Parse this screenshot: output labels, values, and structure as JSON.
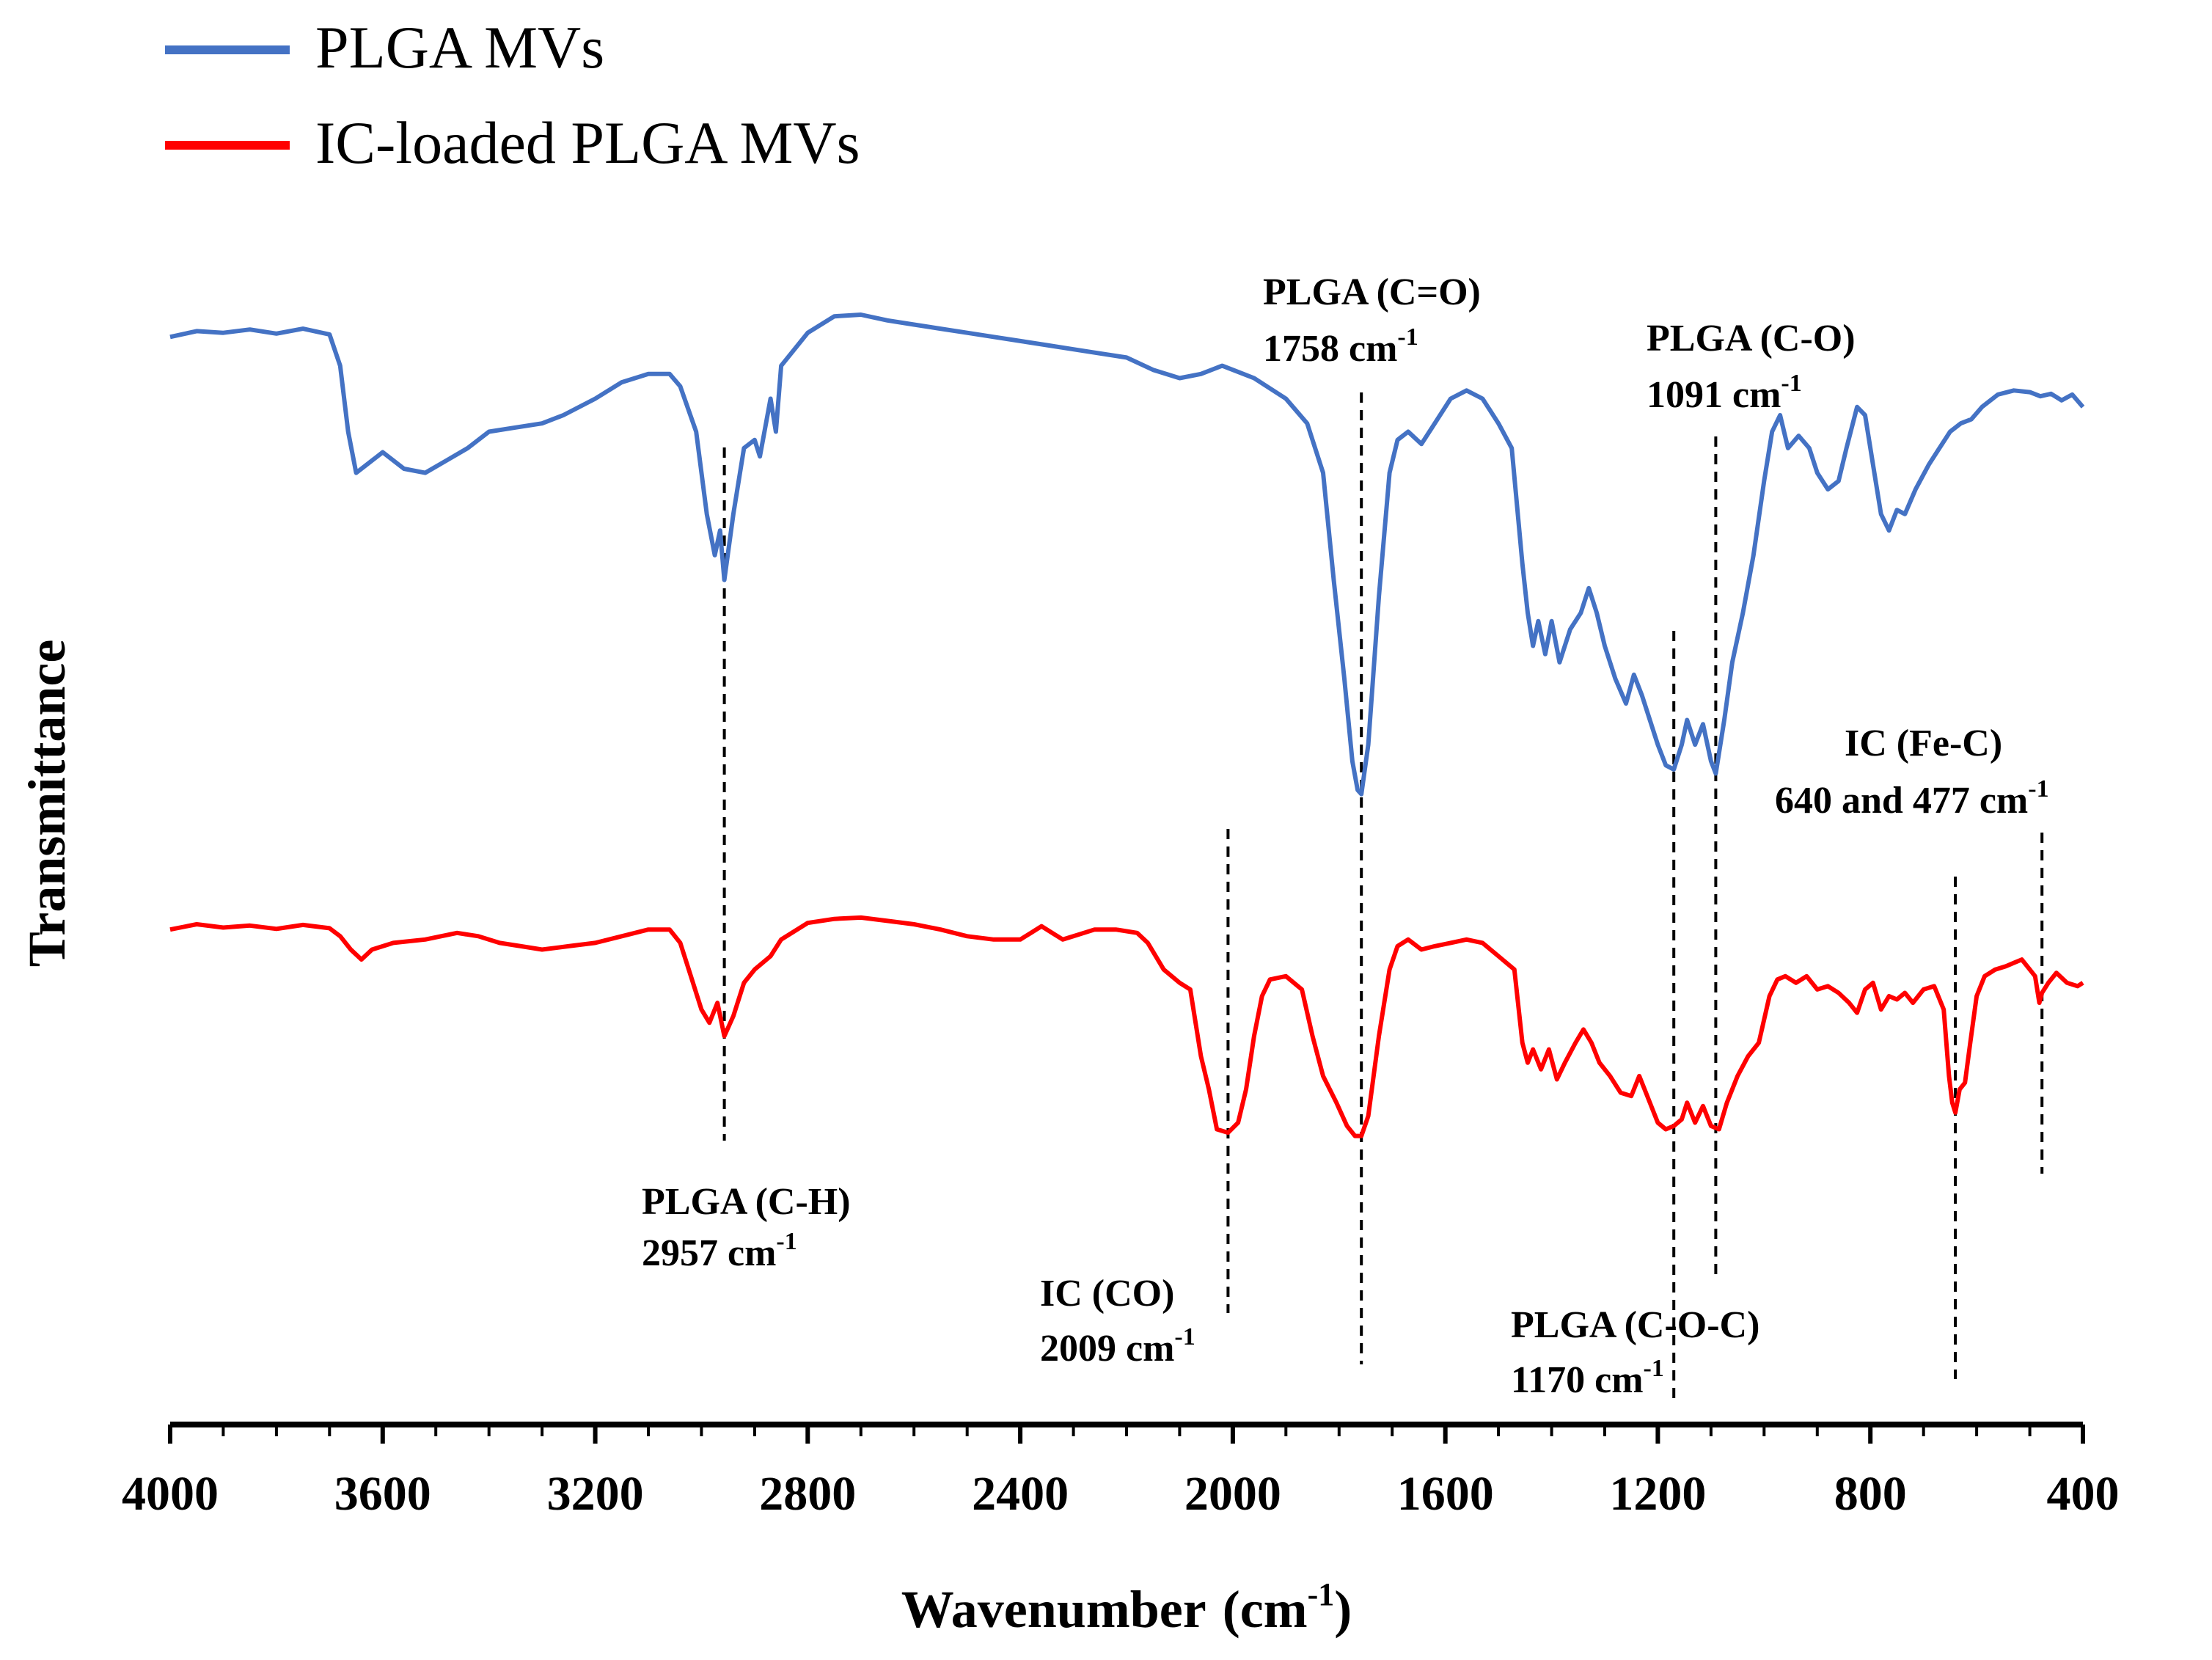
{
  "chart_data": {
    "type": "line",
    "title": "",
    "xlabel": "Wavenumber (cm⁻¹)",
    "xlabel_main": "Wavenumber",
    "xlabel_unit": "(cm",
    "xlabel_sup": "-1",
    "xlabel_close": ")",
    "ylabel": "Transmittance",
    "xlim": [
      4000,
      400
    ],
    "x_reversed": true,
    "x_ticks": [
      4000,
      3600,
      3200,
      2800,
      2400,
      2000,
      1600,
      1200,
      800,
      400
    ],
    "x_tick_labels": [
      "4000",
      "3600",
      "3200",
      "2800",
      "2400",
      "2000",
      "1600",
      "1200",
      "800",
      "400"
    ],
    "y_ticks": [],
    "ylim": [
      0,
      100
    ],
    "grid": false,
    "legend_position": "top-left",
    "colors": {
      "plga": "#4472c4",
      "ic": "#ff0000",
      "axis": "#000000"
    },
    "series": [
      {
        "name": "PLGA MVs",
        "color": "#4472c4",
        "points": [
          [
            4000,
            91.5
          ],
          [
            3950,
            92.2
          ],
          [
            3900,
            92.0
          ],
          [
            3850,
            92.4
          ],
          [
            3800,
            91.9
          ],
          [
            3750,
            92.5
          ],
          [
            3700,
            91.8
          ],
          [
            3680,
            88.0
          ],
          [
            3665,
            80.0
          ],
          [
            3650,
            75.0
          ],
          [
            3620,
            76.5
          ],
          [
            3600,
            77.5
          ],
          [
            3560,
            75.5
          ],
          [
            3520,
            75.0
          ],
          [
            3480,
            76.5
          ],
          [
            3440,
            78.0
          ],
          [
            3400,
            80.0
          ],
          [
            3350,
            80.5
          ],
          [
            3300,
            81.0
          ],
          [
            3260,
            82.0
          ],
          [
            3200,
            84.0
          ],
          [
            3150,
            86.0
          ],
          [
            3100,
            87.0
          ],
          [
            3060,
            87.0
          ],
          [
            3040,
            85.5
          ],
          [
            3010,
            80.0
          ],
          [
            2990,
            70.0
          ],
          [
            2975,
            65.0
          ],
          [
            2965,
            68.0
          ],
          [
            2957,
            62.0
          ],
          [
            2940,
            70.0
          ],
          [
            2920,
            78.0
          ],
          [
            2900,
            79.0
          ],
          [
            2890,
            77.0
          ],
          [
            2870,
            84.0
          ],
          [
            2860,
            80.0
          ],
          [
            2850,
            88.0
          ],
          [
            2800,
            92.0
          ],
          [
            2750,
            94.0
          ],
          [
            2700,
            94.2
          ],
          [
            2650,
            93.5
          ],
          [
            2600,
            93.0
          ],
          [
            2550,
            92.5
          ],
          [
            2500,
            92.0
          ],
          [
            2450,
            91.5
          ],
          [
            2400,
            91.0
          ],
          [
            2350,
            90.5
          ],
          [
            2300,
            90.0
          ],
          [
            2250,
            89.5
          ],
          [
            2200,
            89.0
          ],
          [
            2150,
            87.5
          ],
          [
            2100,
            86.5
          ],
          [
            2060,
            87.0
          ],
          [
            2020,
            88.0
          ],
          [
            2000,
            87.5
          ],
          [
            1960,
            86.5
          ],
          [
            1900,
            84.0
          ],
          [
            1860,
            81.0
          ],
          [
            1830,
            75.0
          ],
          [
            1810,
            62.0
          ],
          [
            1790,
            50.0
          ],
          [
            1775,
            40.0
          ],
          [
            1765,
            36.5
          ],
          [
            1758,
            36.0
          ],
          [
            1745,
            42.0
          ],
          [
            1725,
            60.0
          ],
          [
            1705,
            75.0
          ],
          [
            1690,
            79.0
          ],
          [
            1670,
            80.0
          ],
          [
            1645,
            78.5
          ],
          [
            1620,
            81.0
          ],
          [
            1590,
            84.0
          ],
          [
            1560,
            85.0
          ],
          [
            1530,
            84.0
          ],
          [
            1500,
            81.0
          ],
          [
            1475,
            78.0
          ],
          [
            1455,
            64.0
          ],
          [
            1445,
            58.0
          ],
          [
            1435,
            54.0
          ],
          [
            1425,
            57.0
          ],
          [
            1412,
            53.0
          ],
          [
            1400,
            57.0
          ],
          [
            1385,
            52.0
          ],
          [
            1365,
            56.0
          ],
          [
            1345,
            58.0
          ],
          [
            1330,
            61.0
          ],
          [
            1315,
            58.0
          ],
          [
            1300,
            54.0
          ],
          [
            1280,
            50.0
          ],
          [
            1260,
            47.0
          ],
          [
            1245,
            50.5
          ],
          [
            1230,
            48.0
          ],
          [
            1200,
            42.0
          ],
          [
            1185,
            39.5
          ],
          [
            1170,
            39.0
          ],
          [
            1155,
            42.0
          ],
          [
            1145,
            45.0
          ],
          [
            1130,
            42.0
          ],
          [
            1115,
            44.5
          ],
          [
            1100,
            40.0
          ],
          [
            1091,
            38.5
          ],
          [
            1075,
            45.0
          ],
          [
            1060,
            52.0
          ],
          [
            1040,
            58.0
          ],
          [
            1020,
            65.0
          ],
          [
            1000,
            74.0
          ],
          [
            985,
            80.0
          ],
          [
            970,
            82.0
          ],
          [
            955,
            78.0
          ],
          [
            935,
            79.5
          ],
          [
            915,
            78.0
          ],
          [
            900,
            75.0
          ],
          [
            880,
            73.0
          ],
          [
            860,
            74.0
          ],
          [
            845,
            78.0
          ],
          [
            825,
            83.0
          ],
          [
            810,
            82.0
          ],
          [
            795,
            76.0
          ],
          [
            780,
            70.0
          ],
          [
            765,
            68.0
          ],
          [
            750,
            70.5
          ],
          [
            735,
            70.0
          ],
          [
            715,
            73.0
          ],
          [
            690,
            76.0
          ],
          [
            670,
            78.0
          ],
          [
            650,
            80.0
          ],
          [
            630,
            81.0
          ],
          [
            610,
            81.5
          ],
          [
            590,
            83.0
          ],
          [
            560,
            84.5
          ],
          [
            530,
            85.0
          ],
          [
            500,
            84.8
          ],
          [
            480,
            84.3
          ],
          [
            460,
            84.6
          ],
          [
            440,
            83.8
          ],
          [
            420,
            84.5
          ],
          [
            400,
            83.0
          ]
        ]
      },
      {
        "name": "IC-loaded PLGA MVs",
        "color": "#ff0000",
        "points": [
          [
            4000,
            92.0
          ],
          [
            3950,
            92.8
          ],
          [
            3900,
            92.3
          ],
          [
            3850,
            92.6
          ],
          [
            3800,
            92.1
          ],
          [
            3750,
            92.7
          ],
          [
            3700,
            92.2
          ],
          [
            3680,
            91.0
          ],
          [
            3660,
            89.0
          ],
          [
            3640,
            87.5
          ],
          [
            3620,
            89.0
          ],
          [
            3580,
            90.0
          ],
          [
            3520,
            90.5
          ],
          [
            3460,
            91.5
          ],
          [
            3420,
            91.0
          ],
          [
            3380,
            90.0
          ],
          [
            3340,
            89.5
          ],
          [
            3300,
            89.0
          ],
          [
            3250,
            89.5
          ],
          [
            3200,
            90.0
          ],
          [
            3150,
            91.0
          ],
          [
            3100,
            92.0
          ],
          [
            3060,
            92.0
          ],
          [
            3040,
            90.0
          ],
          [
            3020,
            85.0
          ],
          [
            3000,
            80.0
          ],
          [
            2985,
            78.0
          ],
          [
            2970,
            81.0
          ],
          [
            2957,
            76.0
          ],
          [
            2940,
            79.0
          ],
          [
            2920,
            84.0
          ],
          [
            2900,
            86.0
          ],
          [
            2870,
            88.0
          ],
          [
            2850,
            90.5
          ],
          [
            2800,
            93.0
          ],
          [
            2750,
            93.6
          ],
          [
            2700,
            93.8
          ],
          [
            2650,
            93.3
          ],
          [
            2600,
            92.8
          ],
          [
            2550,
            92.0
          ],
          [
            2500,
            91.0
          ],
          [
            2450,
            90.5
          ],
          [
            2400,
            90.5
          ],
          [
            2380,
            91.5
          ],
          [
            2360,
            92.5
          ],
          [
            2340,
            91.5
          ],
          [
            2320,
            90.5
          ],
          [
            2300,
            91.0
          ],
          [
            2260,
            92.0
          ],
          [
            2220,
            92.0
          ],
          [
            2180,
            91.5
          ],
          [
            2160,
            90.0
          ],
          [
            2130,
            86.0
          ],
          [
            2100,
            84.0
          ],
          [
            2080,
            83.0
          ],
          [
            2060,
            73.0
          ],
          [
            2045,
            68.0
          ],
          [
            2030,
            62.0
          ],
          [
            2009,
            61.5
          ],
          [
            1990,
            63.0
          ],
          [
            1975,
            68.0
          ],
          [
            1960,
            76.0
          ],
          [
            1945,
            82.0
          ],
          [
            1930,
            84.5
          ],
          [
            1900,
            85.0
          ],
          [
            1870,
            83.0
          ],
          [
            1850,
            76.0
          ],
          [
            1830,
            70.0
          ],
          [
            1805,
            66.0
          ],
          [
            1785,
            62.5
          ],
          [
            1770,
            61.0
          ],
          [
            1758,
            61.0
          ],
          [
            1745,
            64.0
          ],
          [
            1725,
            76.0
          ],
          [
            1705,
            86.0
          ],
          [
            1690,
            89.5
          ],
          [
            1670,
            90.5
          ],
          [
            1645,
            89.0
          ],
          [
            1620,
            89.5
          ],
          [
            1590,
            90.0
          ],
          [
            1560,
            90.5
          ],
          [
            1530,
            90.0
          ],
          [
            1500,
            88.0
          ],
          [
            1470,
            86.0
          ],
          [
            1455,
            75.0
          ],
          [
            1445,
            72.0
          ],
          [
            1435,
            74.0
          ],
          [
            1420,
            71.0
          ],
          [
            1405,
            74.0
          ],
          [
            1390,
            69.5
          ],
          [
            1375,
            72.0
          ],
          [
            1355,
            75.0
          ],
          [
            1340,
            77.0
          ],
          [
            1325,
            75.0
          ],
          [
            1310,
            72.0
          ],
          [
            1290,
            70.0
          ],
          [
            1270,
            67.5
          ],
          [
            1250,
            67.0
          ],
          [
            1235,
            70.0
          ],
          [
            1220,
            67.0
          ],
          [
            1200,
            63.0
          ],
          [
            1185,
            62.0
          ],
          [
            1170,
            62.5
          ],
          [
            1155,
            63.5
          ],
          [
            1145,
            66.0
          ],
          [
            1130,
            63.0
          ],
          [
            1115,
            65.5
          ],
          [
            1100,
            62.5
          ],
          [
            1085,
            62.0
          ],
          [
            1070,
            66.0
          ],
          [
            1050,
            70.0
          ],
          [
            1030,
            73.0
          ],
          [
            1010,
            75.0
          ],
          [
            990,
            82.0
          ],
          [
            975,
            84.5
          ],
          [
            960,
            85.0
          ],
          [
            940,
            84.0
          ],
          [
            920,
            85.0
          ],
          [
            900,
            83.0
          ],
          [
            880,
            83.5
          ],
          [
            860,
            82.5
          ],
          [
            840,
            81.0
          ],
          [
            825,
            79.5
          ],
          [
            810,
            83.0
          ],
          [
            795,
            84.0
          ],
          [
            780,
            80.0
          ],
          [
            765,
            82.0
          ],
          [
            750,
            81.5
          ],
          [
            735,
            82.5
          ],
          [
            720,
            81.0
          ],
          [
            700,
            83.0
          ],
          [
            680,
            83.5
          ],
          [
            662,
            80.0
          ],
          [
            652,
            70.0
          ],
          [
            646,
            66.0
          ],
          [
            640,
            64.5
          ],
          [
            632,
            68.0
          ],
          [
            622,
            69.0
          ],
          [
            612,
            75.0
          ],
          [
            600,
            82.0
          ],
          [
            585,
            85.0
          ],
          [
            565,
            86.0
          ],
          [
            545,
            86.5
          ],
          [
            530,
            87.0
          ],
          [
            515,
            87.5
          ],
          [
            500,
            86.0
          ],
          [
            490,
            85.0
          ],
          [
            482,
            81.0
          ],
          [
            477,
            82.5
          ],
          [
            465,
            84.0
          ],
          [
            450,
            85.5
          ],
          [
            430,
            84.0
          ],
          [
            410,
            83.5
          ],
          [
            400,
            84.0
          ]
        ]
      }
    ],
    "reference_lines": [
      {
        "x": 2957,
        "label": "PLGA (C-H) 2957 cm-1"
      },
      {
        "x": 1758,
        "label": "PLGA (C=O) 1758 cm-1"
      },
      {
        "x": 1091,
        "label": "PLGA (C-O) 1091 cm-1"
      },
      {
        "x": 2009,
        "label": "IC (CO) 2009 cm-1"
      },
      {
        "x": 1170,
        "label": "PLGA (C-O-C) 1170 cm-1"
      },
      {
        "x": 640,
        "label": "IC (Fe-C) 640 cm-1"
      },
      {
        "x": 477,
        "label": "IC (Fe-C) 477 cm-1"
      }
    ],
    "annotations": [
      {
        "name": "ann-ch",
        "line1": "PLGA (C-H)",
        "line2_num": "2957 cm",
        "sup": "-1"
      },
      {
        "name": "ann-co-carbonyl",
        "line1": "PLGA (C=O)",
        "line2_num": "1758 cm",
        "sup": "-1"
      },
      {
        "name": "ann-c-o",
        "line1": "PLGA (C-O)",
        "line2_num": "1091 cm",
        "sup": "-1"
      },
      {
        "name": "ann-ic-co",
        "line1": "IC (CO)",
        "line2_num": "2009 cm",
        "sup": "-1"
      },
      {
        "name": "ann-coc",
        "line1": "PLGA (C-O-C)",
        "line2_num": "1170 cm",
        "sup": "-1"
      },
      {
        "name": "ann-fec",
        "line1": "IC (Fe-C)",
        "line2_num": "640 and 477 cm",
        "sup": "-1"
      }
    ]
  },
  "legend": [
    {
      "label": "PLGA MVs",
      "color": "#4472c4"
    },
    {
      "label": "IC-loaded PLGA MVs",
      "color": "#ff0000"
    }
  ]
}
